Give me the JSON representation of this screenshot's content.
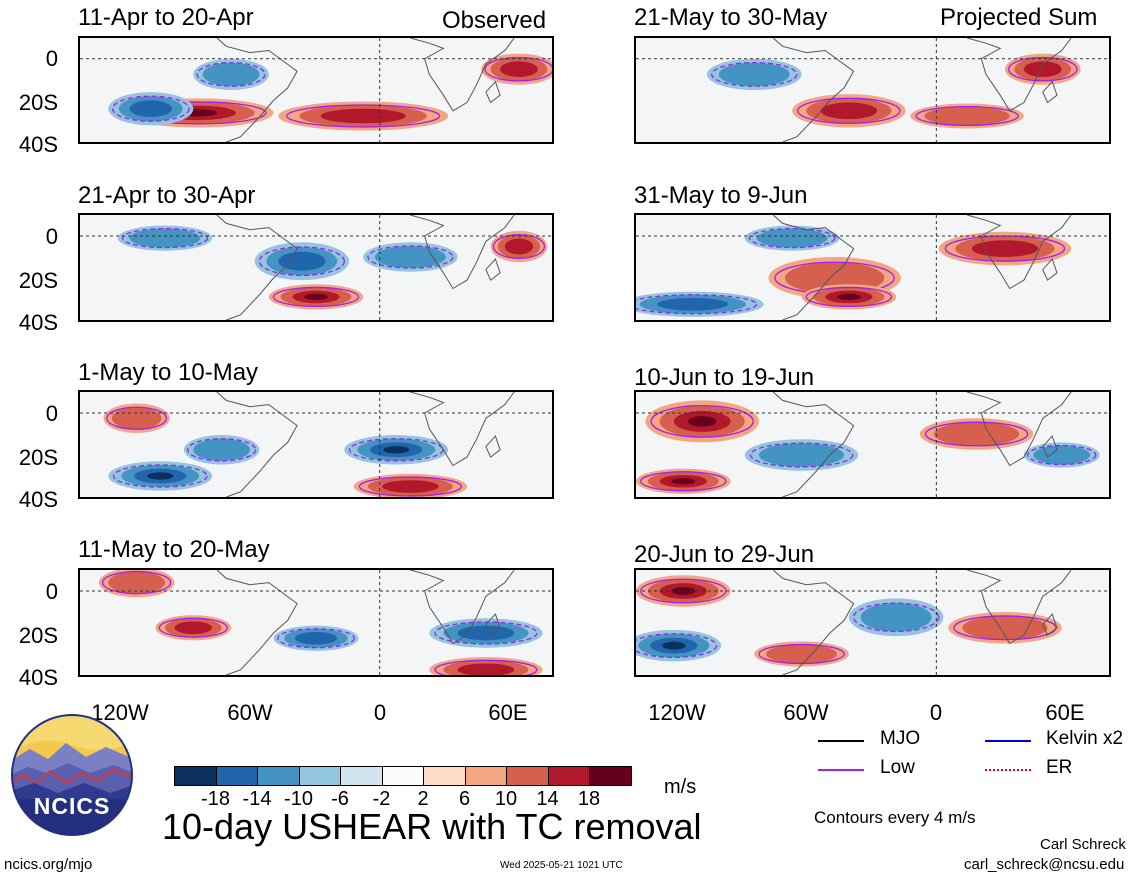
{
  "panels_left": [
    {
      "title": "11-Apr to 20-Apr",
      "note": "Observed"
    },
    {
      "title": "21-Apr to 30-Apr",
      "note": ""
    },
    {
      "title": "1-May to 10-May",
      "note": ""
    },
    {
      "title": "11-May to 20-May",
      "note": ""
    }
  ],
  "panels_right": [
    {
      "title": "21-May to 30-May",
      "note": "Projected Sum"
    },
    {
      "title": "31-May to 9-Jun",
      "note": ""
    },
    {
      "title": "10-Jun to 19-Jun",
      "note": ""
    },
    {
      "title": "20-Jun to 29-Jun",
      "note": ""
    }
  ],
  "y_ticks": [
    "0",
    "20S",
    "40S"
  ],
  "x_ticks": [
    "120W",
    "60W",
    "0",
    "60E"
  ],
  "colorbar": {
    "labels": [
      "-18",
      "-14",
      "-10",
      "-6",
      "-2",
      "2",
      "6",
      "10",
      "14",
      "18"
    ],
    "colors": [
      "#0b2f5e",
      "#2166ac",
      "#4393c3",
      "#92c5de",
      "#d1e5f0",
      "#fbfbfb",
      "#fddbc7",
      "#f4a582",
      "#d6604d",
      "#b2182b",
      "#67001f"
    ],
    "unit": "m/s"
  },
  "legend": {
    "items": [
      {
        "label": "MJO",
        "color": "#000000"
      },
      {
        "label": "Kelvin x2",
        "color": "#0000cc"
      },
      {
        "label": "Low",
        "color": "#a020f0"
      },
      {
        "label": "ER",
        "color": "#dd0000"
      }
    ],
    "contours_note": "Contours every 4 m/s"
  },
  "logo": {
    "text": "NCICS"
  },
  "main_title": "10-day USHEAR with TC removal",
  "footer": {
    "left": "ncics.org/mjo",
    "center": "Wed 2025-05-21 1021 UTC",
    "author": "Carl Schreck",
    "email": "carl_schreck@ncsu.edu"
  }
}
